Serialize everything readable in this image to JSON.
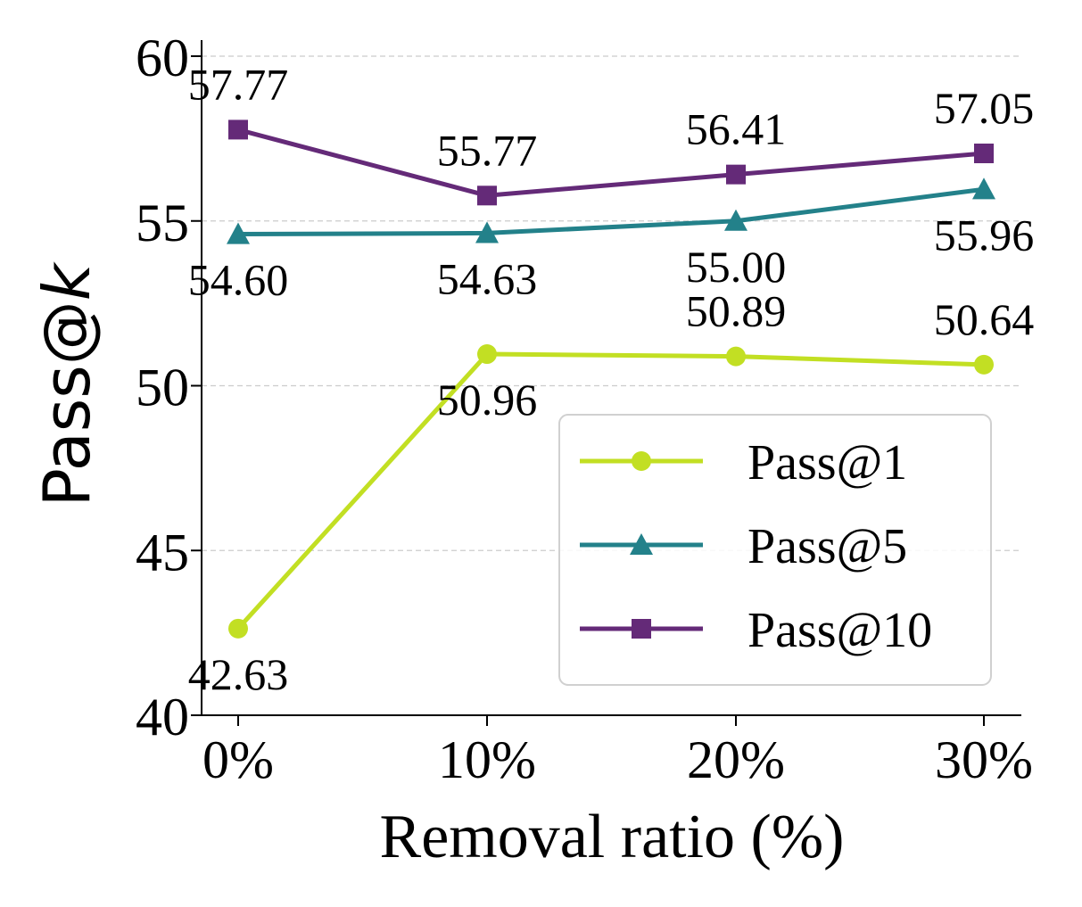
{
  "chart_data": {
    "type": "line",
    "categories": [
      "0%",
      "10%",
      "20%",
      "30%"
    ],
    "xlabel": "Removal ratio (%)",
    "ylabel_prefix": "Pass@",
    "ylabel_var": "k",
    "ylim": [
      40,
      60
    ],
    "yticks": [
      40,
      45,
      50,
      55,
      60
    ],
    "ytick_labels": [
      "40",
      "45",
      "50",
      "55",
      "60"
    ],
    "grid": "horizontal-dashed",
    "legend_position": "lower-right",
    "series": [
      {
        "name": "Pass@1",
        "color": "#c2df23",
        "marker": "circle",
        "values": [
          42.63,
          50.96,
          50.89,
          50.64
        ],
        "labels": [
          "42.63",
          "50.96",
          "50.89",
          "50.64"
        ],
        "label_side": [
          "below",
          "below",
          "above",
          "above"
        ]
      },
      {
        "name": "Pass@5",
        "color": "#23818a",
        "marker": "triangle",
        "values": [
          54.6,
          54.63,
          55.0,
          55.96
        ],
        "labels": [
          "54.60",
          "54.63",
          "55.00",
          "55.96"
        ],
        "label_side": [
          "below",
          "below",
          "below",
          "below"
        ]
      },
      {
        "name": "Pass@10",
        "color": "#642a78",
        "marker": "square",
        "values": [
          57.77,
          55.77,
          56.41,
          57.05
        ],
        "labels": [
          "57.77",
          "55.77",
          "56.41",
          "57.05"
        ],
        "label_side": [
          "above",
          "above",
          "above",
          "above"
        ]
      }
    ]
  }
}
